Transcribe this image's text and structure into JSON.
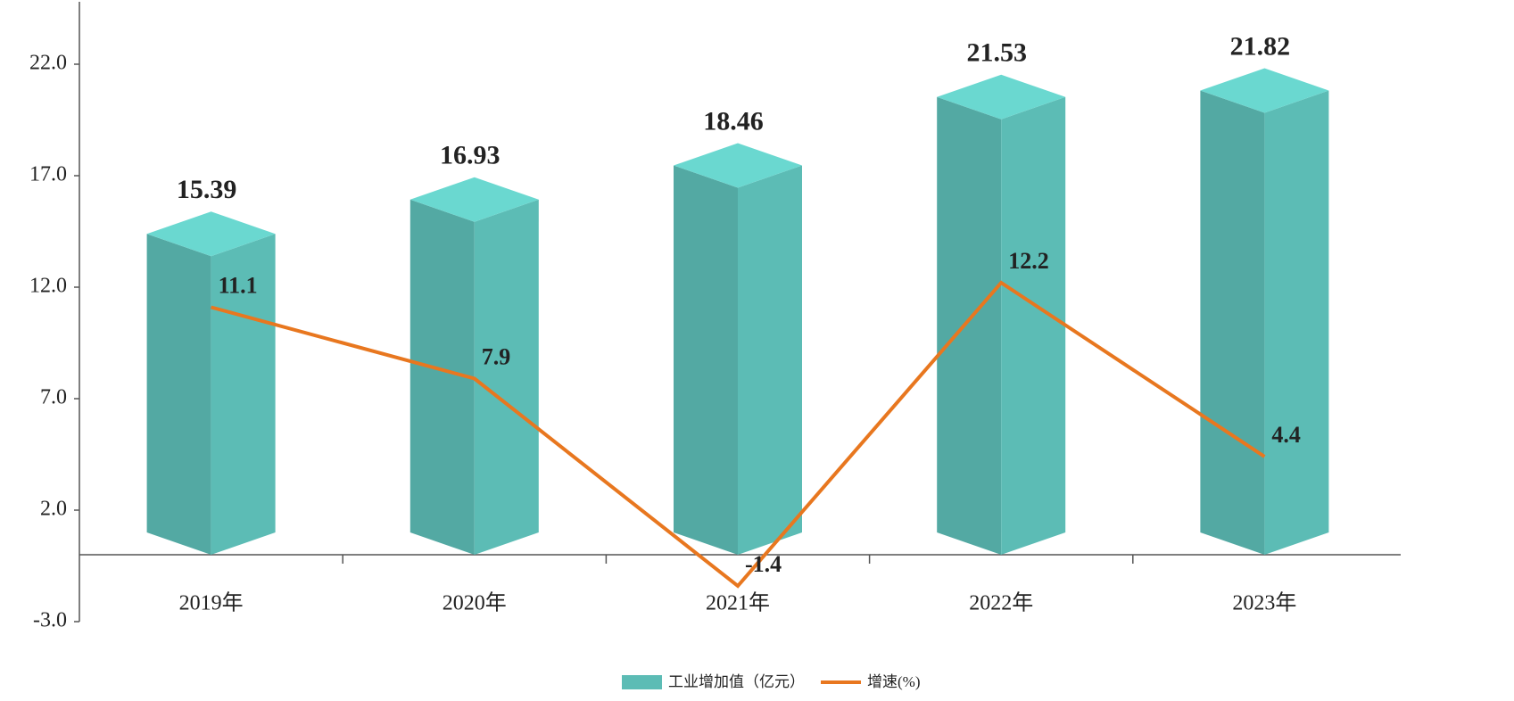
{
  "chart_data": {
    "type": "bar",
    "categories": [
      "2019年",
      "2020年",
      "2021年",
      "2022年",
      "2023年"
    ],
    "series": [
      {
        "name": "工业增加值（亿元）",
        "type": "bar",
        "color": "#5cbcb5",
        "values": [
          15.39,
          16.93,
          18.46,
          21.53,
          21.82
        ]
      },
      {
        "name": "增速(%)",
        "type": "line",
        "color": "#e8771f",
        "values": [
          11.1,
          7.9,
          -1.4,
          12.2,
          4.4
        ]
      }
    ],
    "ylim": [
      -3,
      24.8
    ],
    "yticks": [
      {
        "value": -3,
        "label": "-3.0"
      },
      {
        "value": 2,
        "label": "2.0"
      },
      {
        "value": 7,
        "label": "7.0"
      },
      {
        "value": 12,
        "label": "12.0"
      },
      {
        "value": 17,
        "label": "17.0"
      },
      {
        "value": 22,
        "label": "22.0"
      }
    ]
  }
}
